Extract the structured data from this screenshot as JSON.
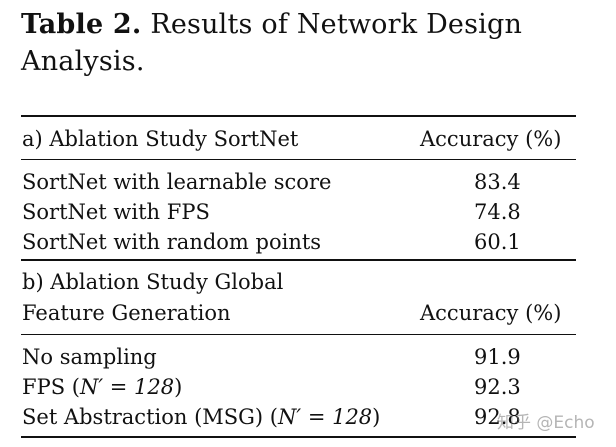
{
  "caption": {
    "label": "Table 2.",
    "text": "Results of Network Design Analysis."
  },
  "section_a": {
    "title": "a) Ablation Study SortNet",
    "accuracy_header": "Accuracy (%)",
    "rows": [
      {
        "method": "SortNet with learnable score",
        "accuracy": "83.4"
      },
      {
        "method": "SortNet with FPS",
        "accuracy": "74.8"
      },
      {
        "method": "SortNet with random points",
        "accuracy": "60.1"
      }
    ]
  },
  "section_b": {
    "title_line1": "b) Ablation Study Global",
    "title_line2": "Feature Generation",
    "accuracy_header": "Accuracy (%)",
    "rows": [
      {
        "method": "No sampling",
        "accuracy": "91.9"
      },
      {
        "method_prefix": "FPS (",
        "method_math": "N′ = 128",
        "method_suffix": ")",
        "accuracy": "92.3"
      },
      {
        "method_prefix": "Set Abstraction (MSG) (",
        "method_math": "N′ = 128",
        "method_suffix": ")",
        "accuracy": "92.8"
      }
    ]
  },
  "watermark": "知乎 @Echo"
}
